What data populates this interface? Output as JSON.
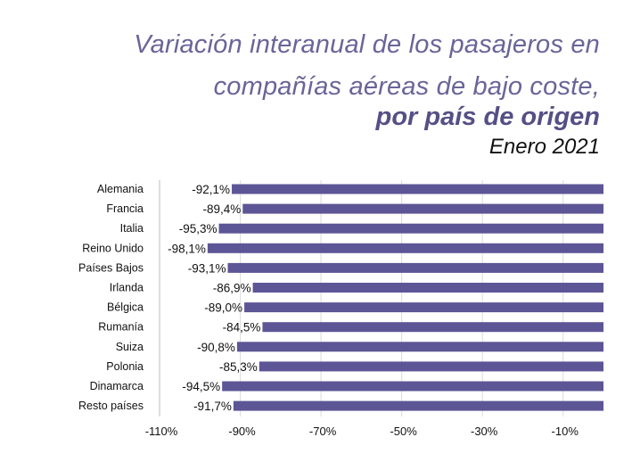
{
  "header": {
    "title_line1": "Variación interanual de los pasajeros en",
    "title_line2": "compañías aéreas de bajo coste,",
    "title_line3": "por país de origen",
    "subtitle": "Enero 2021"
  },
  "colors": {
    "bar": "#5c5696",
    "grid": "#dcdcdc",
    "text": "#111111"
  },
  "chart_data": {
    "type": "bar",
    "orientation": "horizontal",
    "title": "Variación interanual de los pasajeros en compañías aéreas de bajo coste, por país de origen",
    "subtitle": "Enero 2021",
    "categories": [
      "Alemania",
      "Francia",
      "Italia",
      "Reino Unido",
      "Países Bajos",
      "Irlanda",
      "Bélgica",
      "Rumanía",
      "Suiza",
      "Polonia",
      "Dinamarca",
      "Resto países"
    ],
    "values": [
      -92.1,
      -89.4,
      -95.3,
      -98.1,
      -93.1,
      -86.9,
      -89.0,
      -84.5,
      -90.8,
      -85.3,
      -94.5,
      -91.7
    ],
    "labels": [
      "-92,1%",
      "-89,4%",
      "-95,3%",
      "-98,1%",
      "-93,1%",
      "-86,9%",
      "-89,0%",
      "-84,5%",
      "-90,8%",
      "-85,3%",
      "-94,5%",
      "-91,7%"
    ],
    "xlim": [
      -110,
      0
    ],
    "xticks": [
      -110,
      -90,
      -70,
      -50,
      -30,
      -10
    ],
    "xtick_labels": [
      "-110%",
      "-90%",
      "-70%",
      "-50%",
      "-30%",
      "-10%"
    ],
    "grid": true,
    "xlabel": "",
    "ylabel": ""
  }
}
